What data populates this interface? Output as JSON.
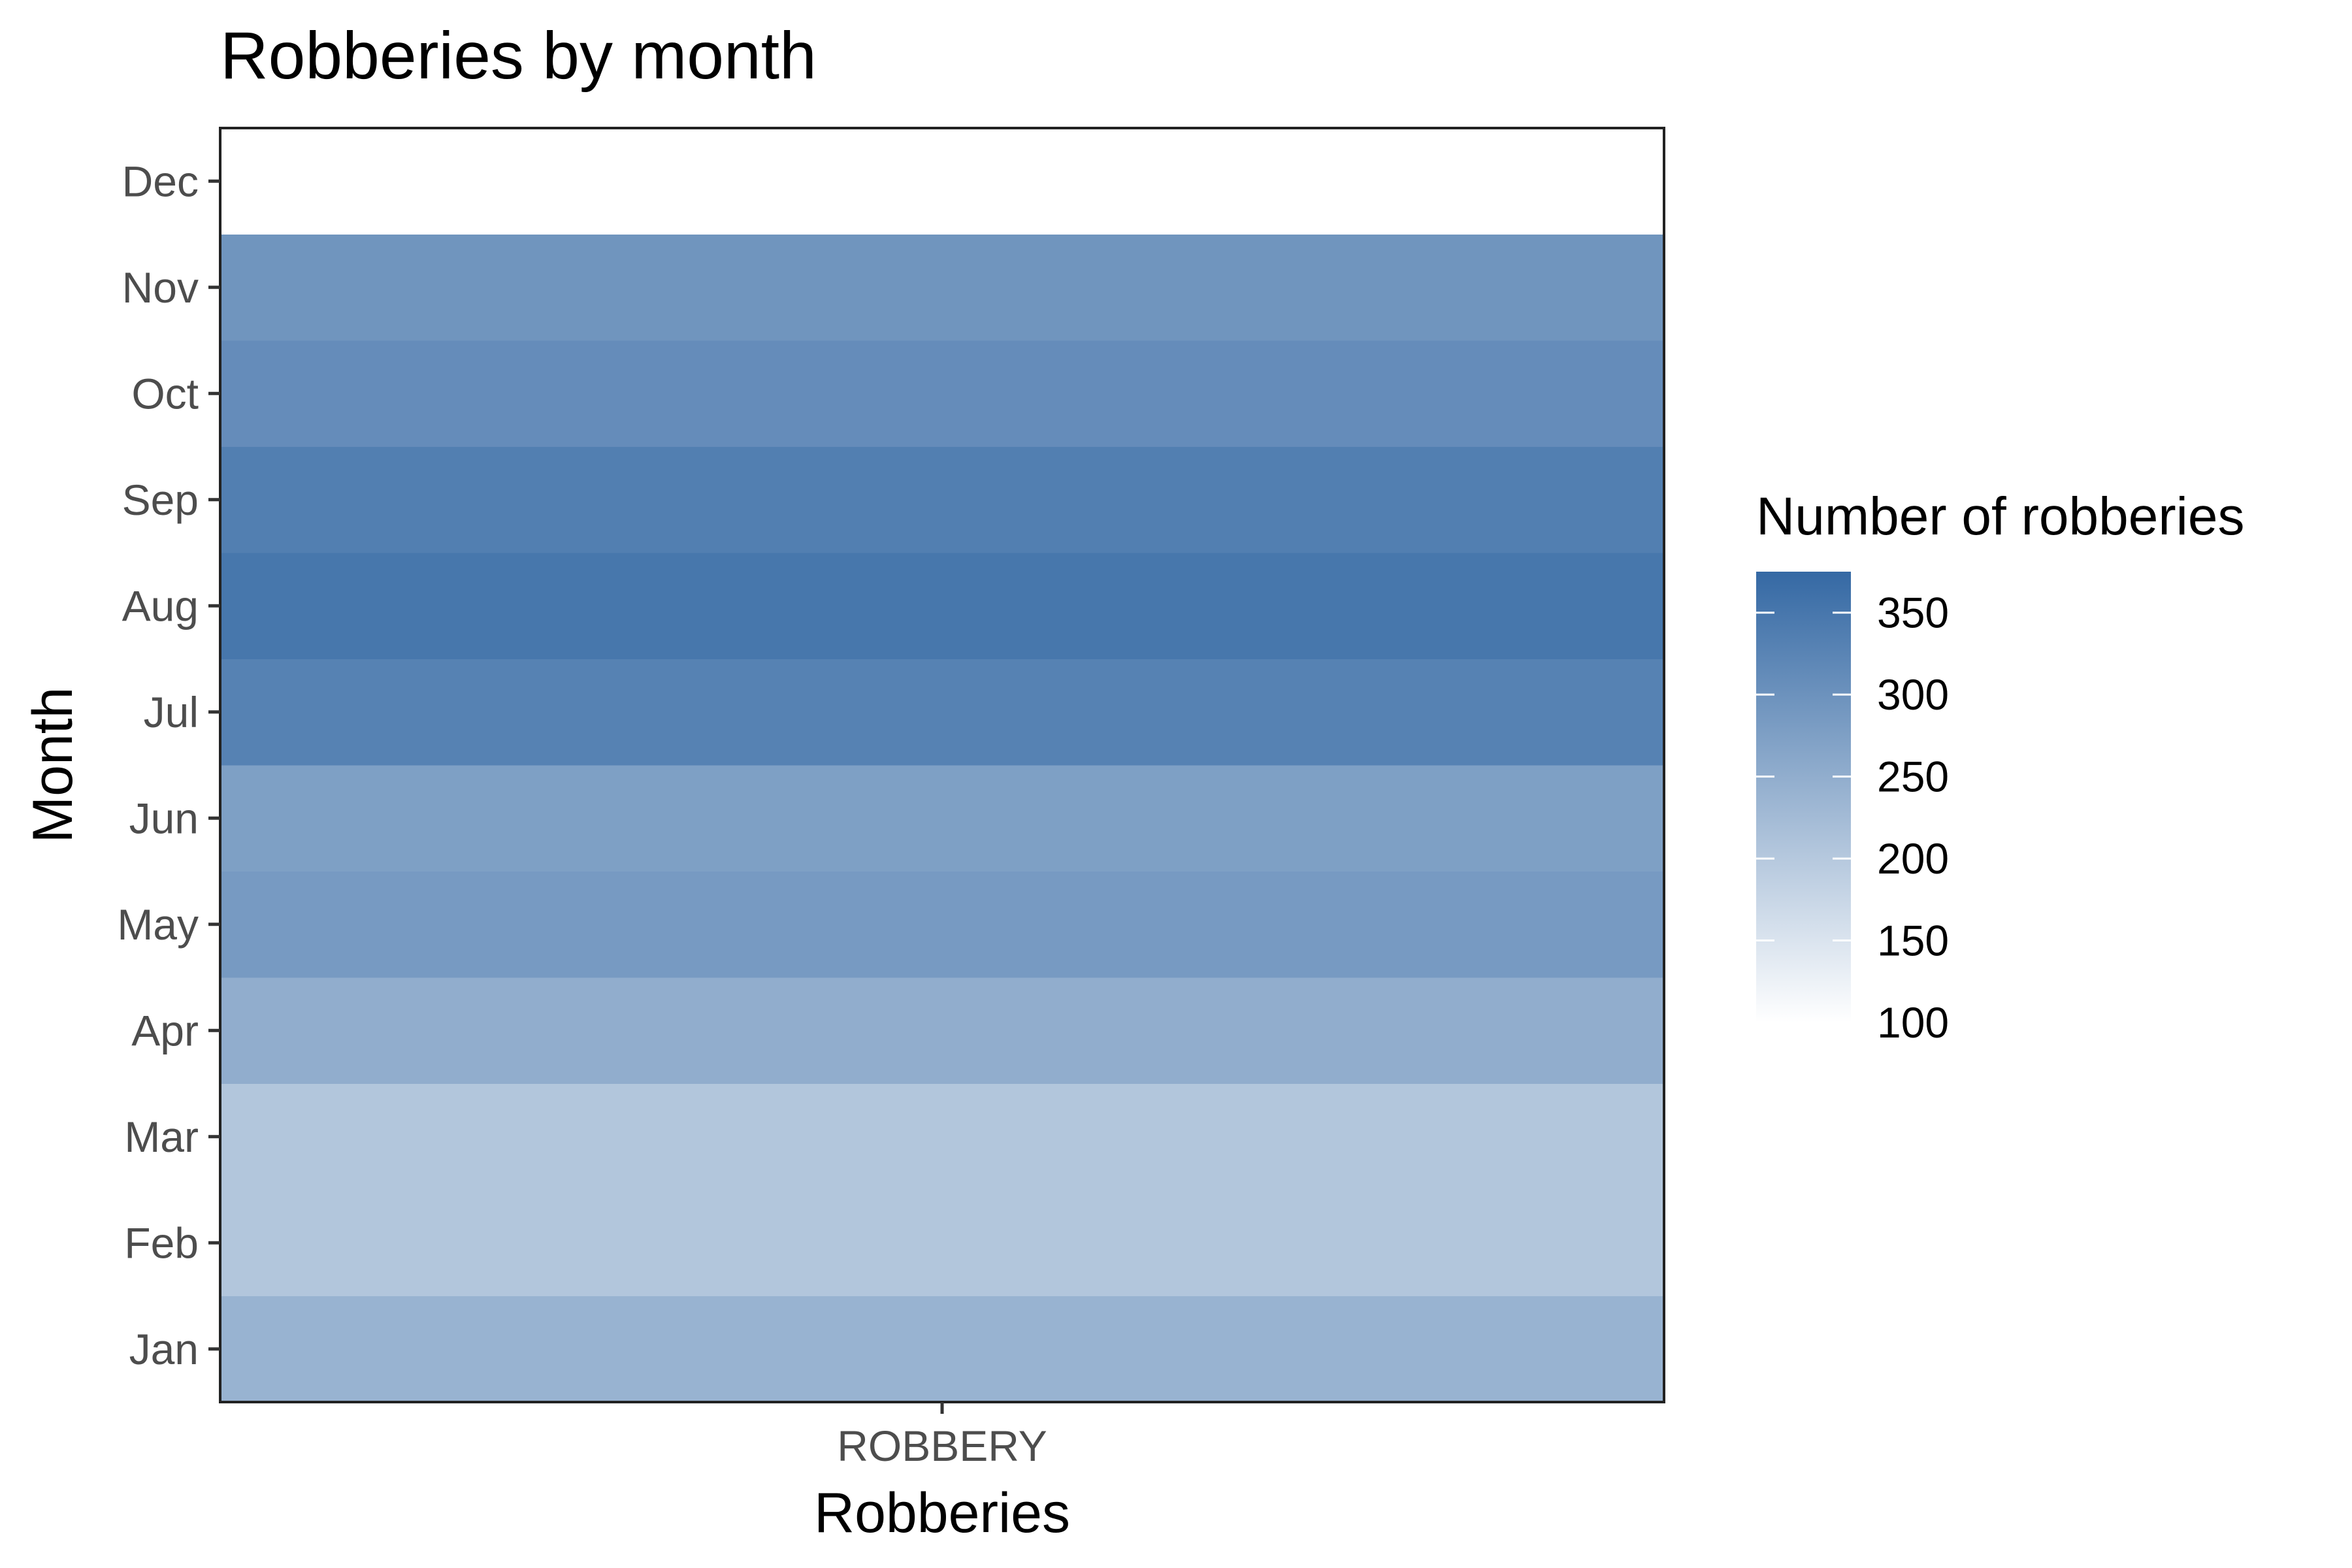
{
  "chart_data": {
    "type": "heatmap",
    "title": "Robberies by month",
    "xlabel": "Robberies",
    "ylabel": "Month",
    "x_categories": [
      "ROBBERY"
    ],
    "y_categories": [
      "Jan",
      "Feb",
      "Mar",
      "Apr",
      "May",
      "Jun",
      "Jul",
      "Aug",
      "Sep",
      "Oct",
      "Nov",
      "Dec"
    ],
    "series": [
      {
        "x": "ROBBERY",
        "values": [
          240,
          205,
          205,
          250,
          285,
          275,
          330,
          350,
          335,
          310,
          295,
          100
        ]
      }
    ],
    "legend": {
      "title": "Number of robberies",
      "position": "right",
      "ticks": [
        100,
        150,
        200,
        250,
        300,
        350
      ],
      "range": [
        100,
        375
      ]
    },
    "color_scale": {
      "low": "#ffffff",
      "high": "#3569a4"
    },
    "grid": false
  }
}
